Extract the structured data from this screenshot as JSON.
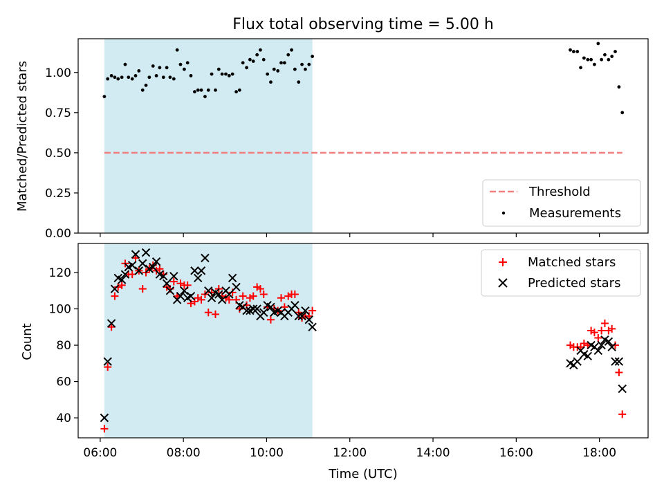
{
  "chart_data": [
    {
      "type": "scatter",
      "title": "Flux total observing time = 5.00 h",
      "xlabel": "",
      "ylabel": "Matched/Predicted stars",
      "xlim": [
        5.47,
        19.17
      ],
      "ylim": [
        0.0,
        1.21
      ],
      "yticks": [
        "0.00",
        "0.25",
        "0.50",
        "0.75",
        "1.00"
      ],
      "yticks_values": [
        0.0,
        0.25,
        0.5,
        0.75,
        1.0
      ],
      "shaded_span": {
        "x_start": 6.1,
        "x_end": 11.1,
        "color": "#add8e6"
      },
      "threshold": {
        "name": "Threshold",
        "value": 0.5,
        "x_start": 6.1,
        "x_end": 18.55,
        "color": "#f08080"
      },
      "legend_position": "lower right",
      "series": [
        {
          "name": "Measurements",
          "color": "#000000",
          "marker": "dot",
          "x": [
            6.1,
            6.18,
            6.27,
            6.35,
            6.43,
            6.52,
            6.6,
            6.68,
            6.77,
            6.85,
            6.93,
            7.02,
            7.1,
            7.18,
            7.27,
            7.35,
            7.43,
            7.52,
            7.6,
            7.68,
            7.77,
            7.85,
            7.93,
            8.02,
            8.1,
            8.18,
            8.27,
            8.35,
            8.43,
            8.52,
            8.6,
            8.68,
            8.77,
            8.85,
            8.93,
            9.02,
            9.1,
            9.18,
            9.27,
            9.35,
            9.43,
            9.52,
            9.6,
            9.68,
            9.77,
            9.85,
            9.93,
            10.02,
            10.1,
            10.18,
            10.27,
            10.35,
            10.43,
            10.52,
            10.6,
            10.68,
            10.77,
            10.85,
            10.93,
            11.02,
            11.1,
            17.3,
            17.38,
            17.47,
            17.55,
            17.63,
            17.72,
            17.8,
            17.88,
            17.97,
            18.05,
            18.13,
            18.22,
            18.3,
            18.38,
            18.47,
            18.55
          ],
          "y": [
            0.85,
            0.96,
            0.98,
            0.97,
            0.96,
            0.97,
            1.05,
            0.97,
            0.96,
            0.98,
            1.01,
            0.89,
            0.92,
            0.97,
            1.04,
            0.98,
            1.03,
            0.97,
            1.03,
            0.97,
            0.96,
            1.14,
            1.05,
            1.02,
            1.06,
            0.98,
            0.88,
            0.89,
            0.89,
            0.85,
            0.89,
            0.99,
            0.89,
            1.02,
            0.99,
            0.99,
            0.98,
            0.99,
            0.88,
            0.89,
            1.06,
            1.03,
            1.08,
            1.07,
            1.11,
            1.14,
            1.08,
            0.99,
            0.94,
            1.02,
            1.01,
            1.06,
            1.06,
            1.11,
            1.14,
            1.02,
            0.94,
            1.05,
            1.02,
            1.05,
            1.1,
            1.14,
            1.13,
            1.13,
            1.03,
            1.09,
            1.08,
            1.08,
            1.05,
            1.18,
            1.08,
            1.11,
            1.08,
            1.1,
            1.13,
            0.91,
            0.75
          ]
        }
      ]
    },
    {
      "type": "scatter",
      "title": "",
      "xlabel": "Time (UTC)",
      "ylabel": "Count",
      "xlim": [
        5.47,
        19.17
      ],
      "ylim": [
        29,
        136
      ],
      "xticks": [
        "06:00",
        "08:00",
        "10:00",
        "12:00",
        "14:00",
        "16:00",
        "18:00"
      ],
      "xticks_values": [
        6,
        8,
        10,
        12,
        14,
        16,
        18
      ],
      "yticks": [
        "40",
        "60",
        "80",
        "100",
        "120"
      ],
      "yticks_values": [
        40,
        60,
        80,
        100,
        120
      ],
      "shaded_span": {
        "x_start": 6.1,
        "x_end": 11.1,
        "color": "#add8e6"
      },
      "legend_position": "upper right",
      "x": [
        6.1,
        6.18,
        6.27,
        6.35,
        6.43,
        6.52,
        6.6,
        6.68,
        6.77,
        6.85,
        6.93,
        7.02,
        7.1,
        7.18,
        7.27,
        7.35,
        7.43,
        7.52,
        7.6,
        7.68,
        7.77,
        7.85,
        7.93,
        8.02,
        8.1,
        8.18,
        8.27,
        8.35,
        8.43,
        8.52,
        8.6,
        8.68,
        8.77,
        8.85,
        8.93,
        9.02,
        9.1,
        9.18,
        9.27,
        9.35,
        9.43,
        9.52,
        9.6,
        9.68,
        9.77,
        9.85,
        9.93,
        10.02,
        10.1,
        10.18,
        10.27,
        10.35,
        10.43,
        10.52,
        10.6,
        10.68,
        10.77,
        10.85,
        10.93,
        11.02,
        11.1,
        17.3,
        17.38,
        17.47,
        17.55,
        17.63,
        17.72,
        17.8,
        17.88,
        17.97,
        18.05,
        18.13,
        18.22,
        18.3,
        18.38,
        18.47,
        18.55
      ],
      "series": [
        {
          "name": "Matched stars",
          "color": "#ff0000",
          "marker": "plus",
          "values": [
            34,
            68,
            90,
            107,
            112,
            113,
            125,
            119,
            119,
            128,
            121,
            111,
            120,
            122,
            124,
            121,
            122,
            119,
            112,
            111,
            115,
            107,
            114,
            113,
            113,
            103,
            104,
            106,
            105,
            108,
            98,
            109,
            97,
            111,
            107,
            106,
            105,
            109,
            105,
            100,
            107,
            102,
            106,
            107,
            112,
            111,
            108,
            101,
            94,
            100,
            99,
            106,
            101,
            107,
            108,
            108,
            98,
            95,
            96,
            96,
            99,
            80,
            79,
            79,
            79,
            81,
            80,
            88,
            87,
            84,
            88,
            92,
            88,
            89,
            80,
            65,
            42
          ]
        },
        {
          "name": "Predicted stars",
          "color": "#000000",
          "marker": "x",
          "values": [
            40,
            71,
            92,
            111,
            117,
            116,
            119,
            123,
            124,
            130,
            121,
            125,
            131,
            122,
            123,
            126,
            119,
            118,
            114,
            110,
            118,
            105,
            107,
            110,
            106,
            107,
            121,
            117,
            121,
            128,
            110,
            106,
            109,
            108,
            105,
            110,
            108,
            117,
            112,
            102,
            101,
            99,
            99,
            100,
            100,
            96,
            98,
            102,
            101,
            98,
            99,
            98,
            96,
            98,
            100,
            102,
            96,
            96,
            99,
            94,
            90,
            70,
            69,
            71,
            77,
            75,
            74,
            80,
            79,
            77,
            80,
            83,
            82,
            79,
            71,
            71,
            56
          ]
        }
      ]
    }
  ]
}
